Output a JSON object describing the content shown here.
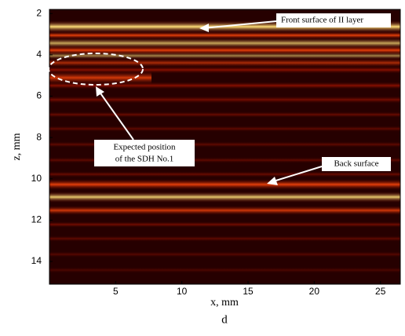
{
  "chart_data": {
    "type": "image",
    "x_label": "x, mm",
    "y_label": "z, mm",
    "caption": "d",
    "xlim": [
      0,
      26.5
    ],
    "xticks": [
      5,
      10,
      15,
      20,
      25
    ],
    "ylim": [
      1.8,
      15.1
    ],
    "yticks": [
      2,
      4,
      6,
      8,
      10,
      12,
      14
    ],
    "y_reversed": true,
    "annotations": {
      "front": "Front surface of II layer",
      "back": "Back surface",
      "sdh": [
        "Expected position",
        "of the SDH No.1"
      ]
    }
  }
}
